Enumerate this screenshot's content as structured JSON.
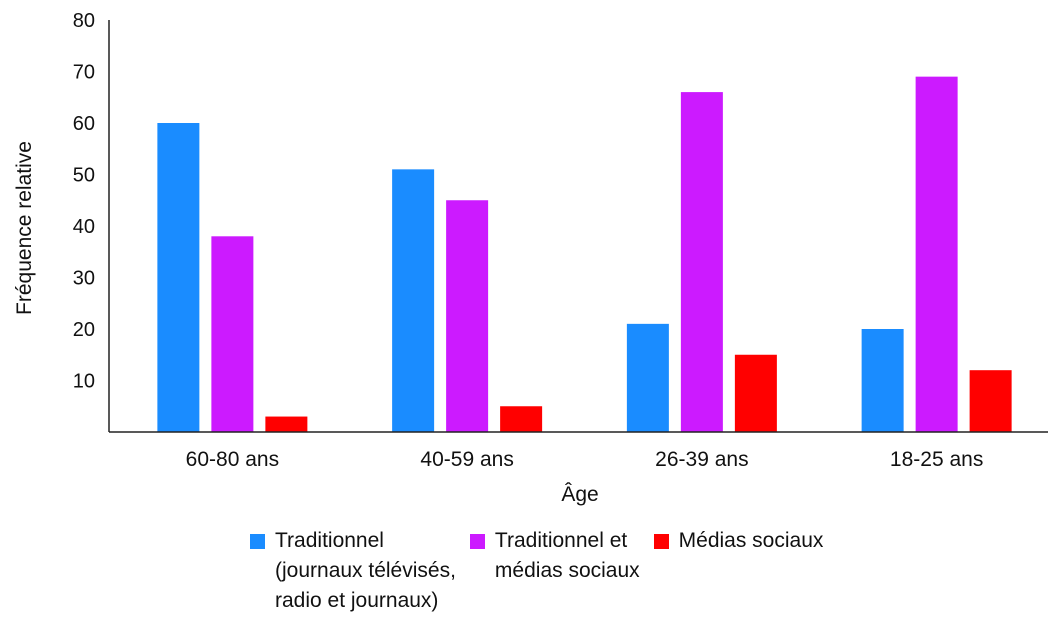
{
  "chart_data": {
    "type": "bar",
    "categories": [
      "60-80 ans",
      "40-59 ans",
      "26-39 ans",
      "18-25 ans"
    ],
    "series": [
      {
        "name": "Traditionnel\n(journaux télévisés,\nradio et journaux)",
        "color": "#1a8cff",
        "values": [
          60,
          51,
          21,
          20
        ]
      },
      {
        "name": "Traditionnel et\nmédias sociaux",
        "color": "#cc1aff",
        "values": [
          38,
          45,
          66,
          69
        ]
      },
      {
        "name": "Médias sociaux",
        "color": "#ff0000",
        "values": [
          3,
          5,
          15,
          12
        ]
      }
    ],
    "xlabel": "Âge",
    "ylabel": "Fréquence relative",
    "ylim": [
      0,
      80
    ],
    "yticks": [
      "10",
      "20",
      "30",
      "40",
      "50",
      "60",
      "70",
      "80"
    ],
    "grid": false,
    "legend_position": "bottom"
  }
}
